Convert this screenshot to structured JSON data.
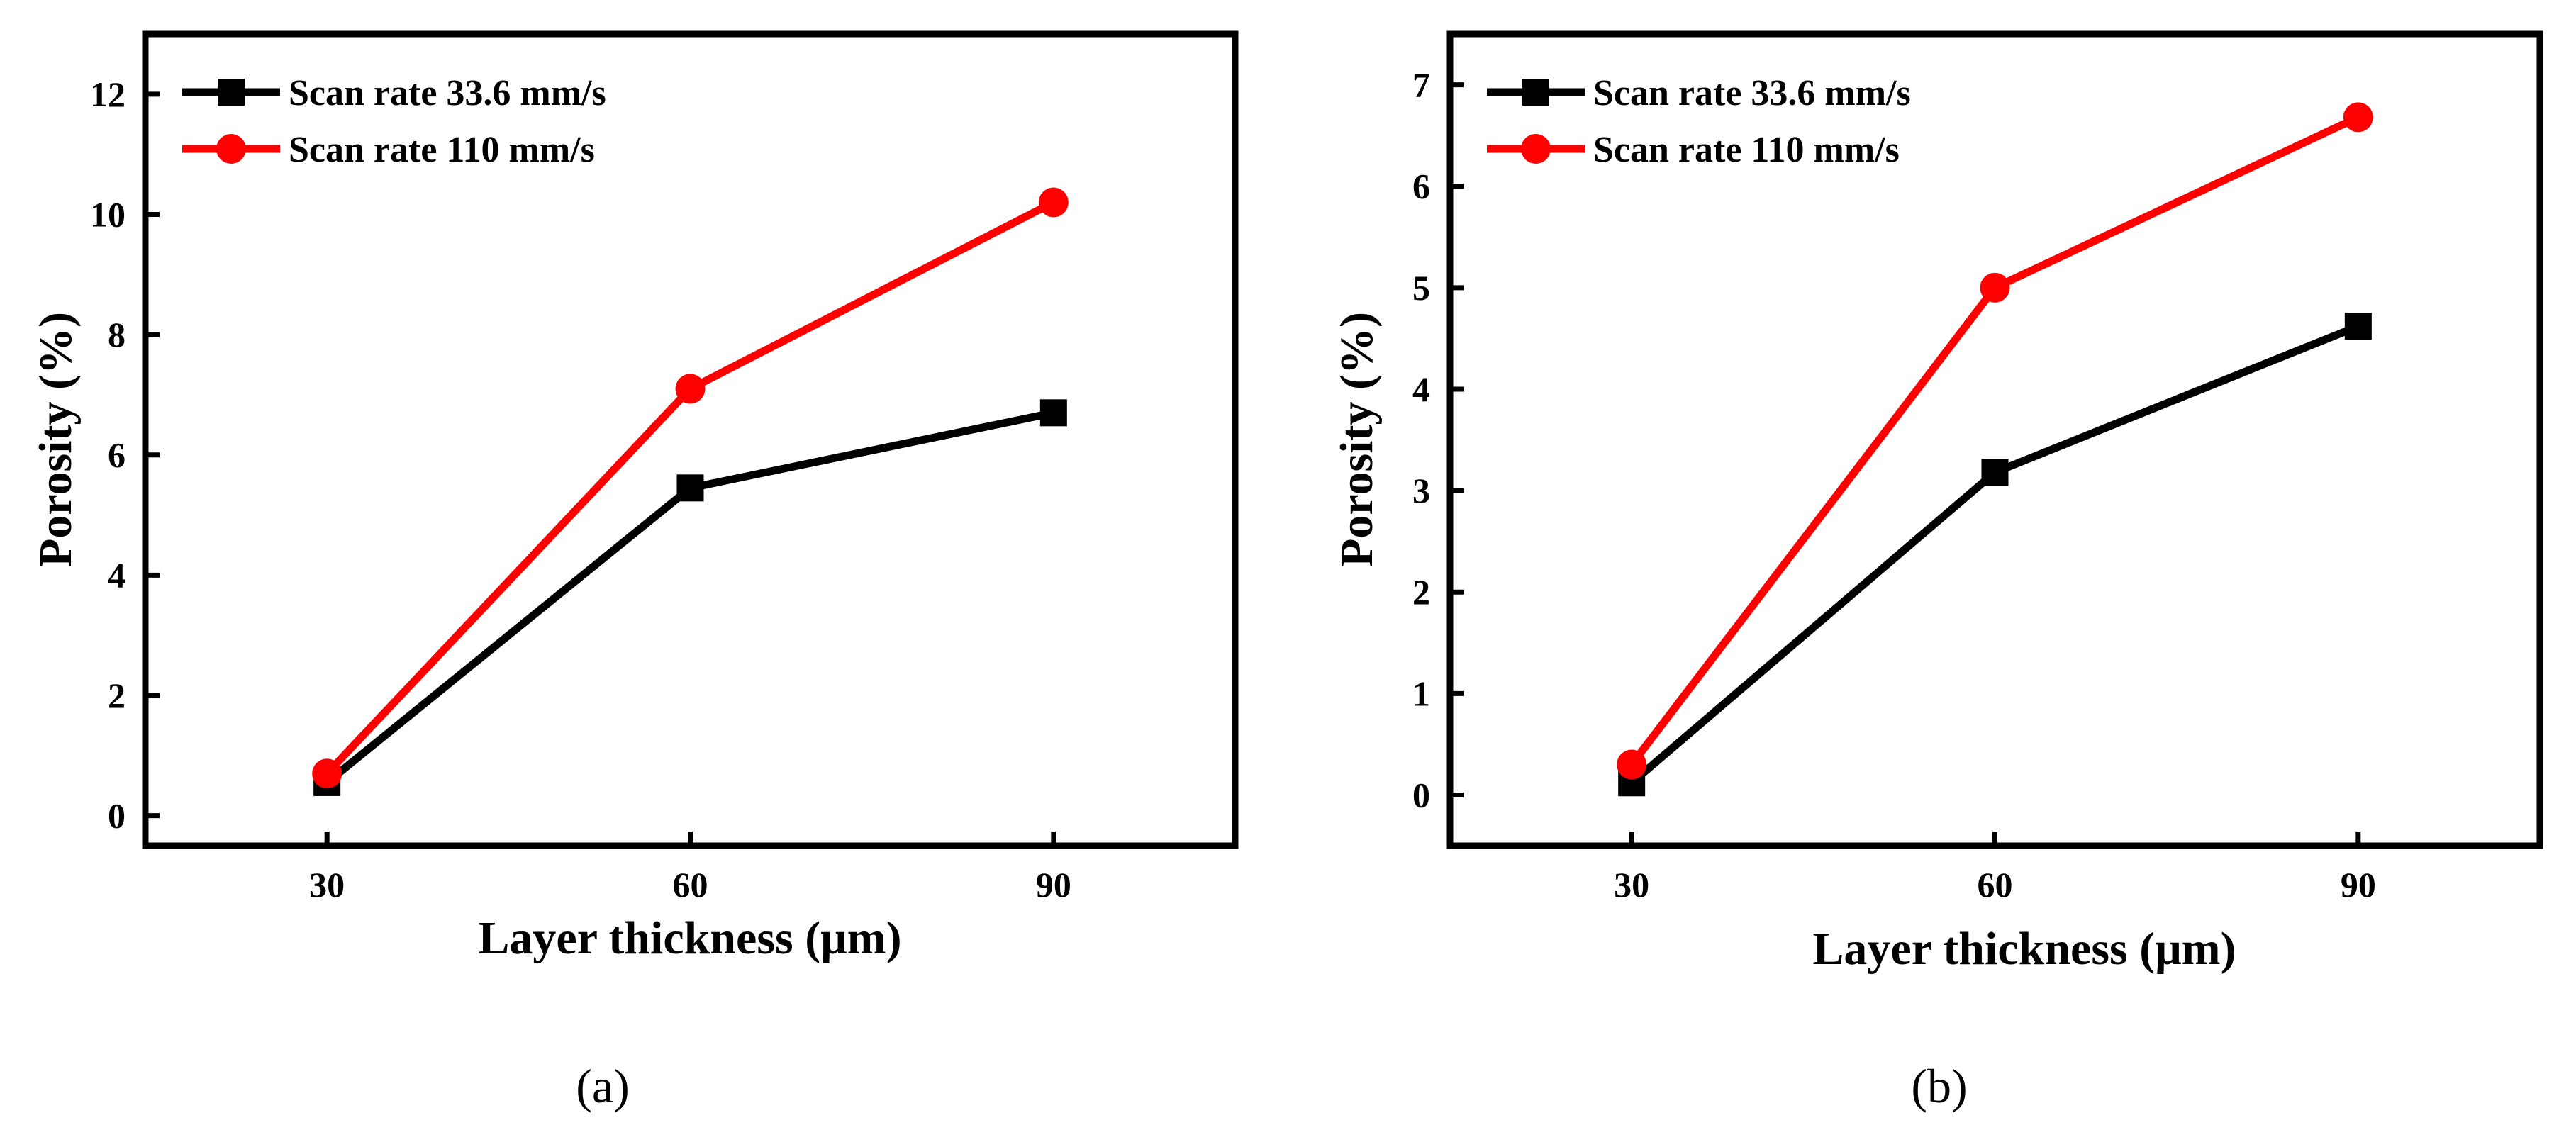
{
  "chart_data": [
    {
      "type": "line",
      "panel_label": "(a)",
      "xlabel": "Layer thickness (μm)",
      "ylabel": "Porosity (%)",
      "x": [
        30,
        60,
        90
      ],
      "xticks": [
        "30",
        "60",
        "90"
      ],
      "xlim": [
        15,
        105
      ],
      "ylim": [
        -0.5,
        13
      ],
      "yticks": [
        0,
        2,
        4,
        6,
        8,
        10,
        12
      ],
      "grid": false,
      "legend_position": "top-left",
      "series": [
        {
          "name": "Scan rate 33.6 mm/s",
          "color": "#000000",
          "marker": "square",
          "values": [
            0.55,
            5.45,
            6.7
          ]
        },
        {
          "name": "Scan rate 110 mm/s",
          "color": "#ff0000",
          "marker": "circle",
          "values": [
            0.7,
            7.1,
            10.2
          ]
        }
      ]
    },
    {
      "type": "line",
      "panel_label": "(b)",
      "xlabel": "Layer thickness (μm)",
      "ylabel": "Porosity (%)",
      "x": [
        30,
        60,
        90
      ],
      "xticks": [
        "30",
        "60",
        "90"
      ],
      "xlim": [
        15,
        105
      ],
      "ylim": [
        -0.5,
        7.5
      ],
      "yticks": [
        0,
        1,
        2,
        3,
        4,
        5,
        6,
        7
      ],
      "grid": false,
      "legend_position": "top-left",
      "series": [
        {
          "name": "Scan rate 33.6 mm/s",
          "color": "#000000",
          "marker": "square",
          "values": [
            0.12,
            3.18,
            4.62
          ]
        },
        {
          "name": "Scan rate 110 mm/s",
          "color": "#ff0000",
          "marker": "circle",
          "values": [
            0.3,
            5.0,
            6.68
          ]
        }
      ]
    }
  ]
}
